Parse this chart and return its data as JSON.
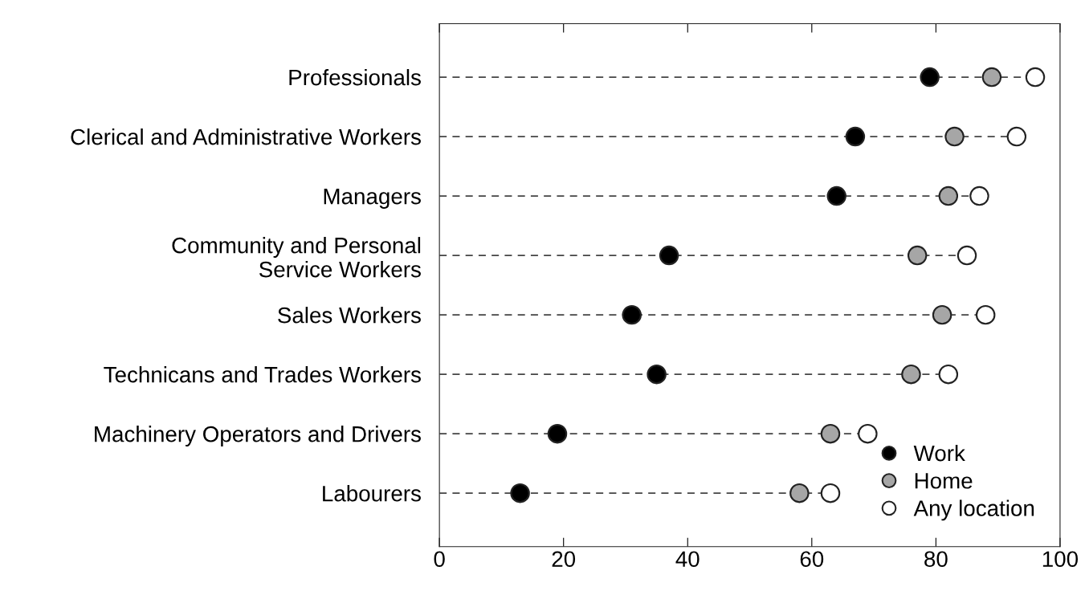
{
  "chart_data": {
    "type": "lollipop",
    "orientation": "horizontal",
    "line_style": "dashed",
    "marker": "circle",
    "categories": [
      "Professionals",
      "Clerical and Administrative Workers",
      "Managers",
      "Community and Personal\nService Workers",
      "Sales Workers",
      "Technicans and Trades Workers",
      "Machinery Operators and Drivers",
      "Labourers"
    ],
    "series": [
      {
        "name": "Work",
        "color": "#000000",
        "values": [
          79,
          67,
          64,
          37,
          31,
          35,
          19,
          13
        ]
      },
      {
        "name": "Home",
        "color": "#a6a6a6",
        "values": [
          89,
          83,
          82,
          77,
          81,
          76,
          63,
          58
        ]
      },
      {
        "name": "Any location",
        "color": "#ffffff",
        "values": [
          96,
          93,
          87,
          85,
          88,
          82,
          69,
          63
        ]
      }
    ],
    "xlim": [
      0,
      100
    ],
    "xticks": [
      0,
      20,
      40,
      60,
      80,
      100
    ],
    "grid": false,
    "legend": "bottom right"
  }
}
